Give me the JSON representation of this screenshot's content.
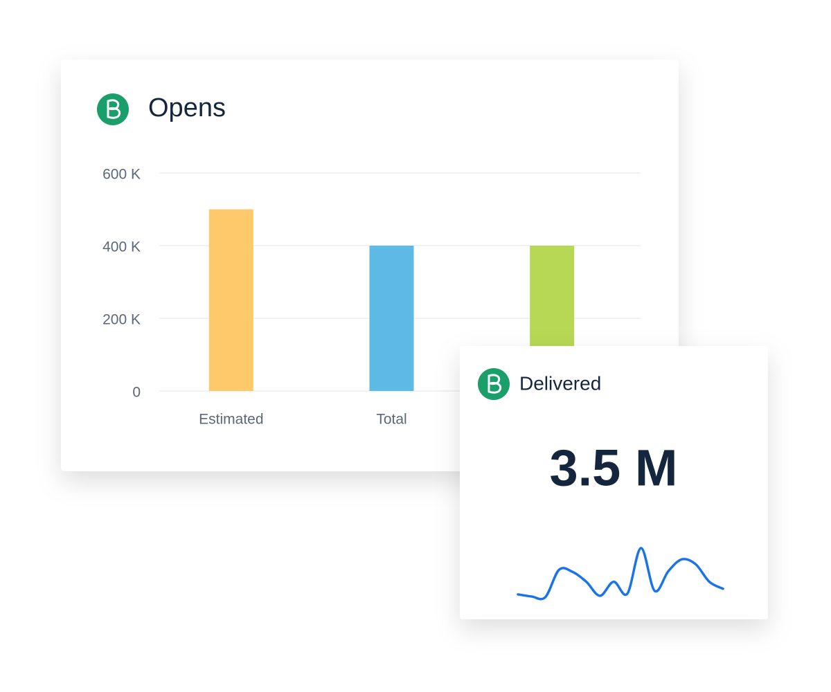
{
  "chart_data": [
    {
      "type": "bar",
      "title": "Opens",
      "categories": [
        "Estimated",
        "Total",
        null
      ],
      "values": [
        500000,
        400000,
        400000
      ],
      "colors": [
        "#fec96b",
        "#5db9e6",
        "#b6d854"
      ],
      "ylim": [
        0,
        600000
      ],
      "yticks": [
        0,
        {
          "value": 200000,
          "label": "200 K"
        },
        {
          "value": 400000,
          "label": "400 K"
        },
        {
          "value": 600000,
          "label": "600 K"
        }
      ],
      "grid": true
    },
    {
      "type": "line",
      "title": "Delivered",
      "kpi": {
        "value": 3500000,
        "label": "3.5 M"
      },
      "values": [
        12,
        9,
        8,
        47,
        44,
        30,
        10,
        30,
        13,
        78,
        17,
        45,
        62,
        55,
        30,
        20
      ],
      "color": "#1a73e8"
    }
  ]
}
